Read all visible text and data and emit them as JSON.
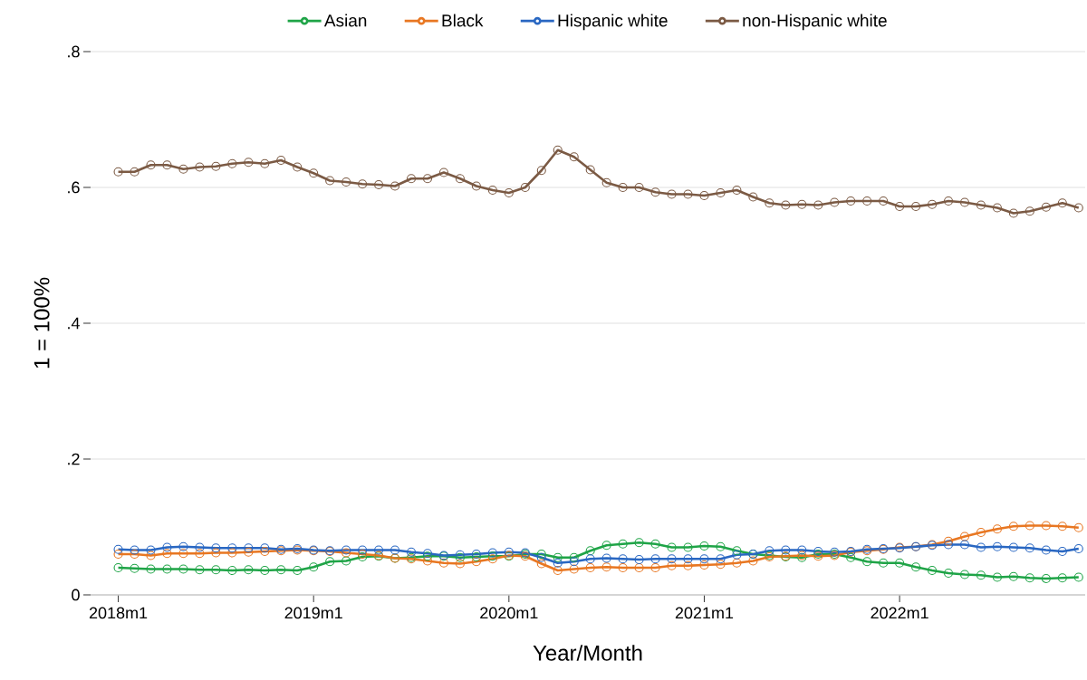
{
  "chart_data": {
    "type": "line",
    "xlabel": "Year/Month",
    "ylabel": "1 = 100%",
    "x": [
      "2018-01",
      "2018-02",
      "2018-03",
      "2018-04",
      "2018-05",
      "2018-06",
      "2018-07",
      "2018-08",
      "2018-09",
      "2018-10",
      "2018-11",
      "2018-12",
      "2019-01",
      "2019-02",
      "2019-03",
      "2019-04",
      "2019-05",
      "2019-06",
      "2019-07",
      "2019-08",
      "2019-09",
      "2019-10",
      "2019-11",
      "2019-12",
      "2020-01",
      "2020-02",
      "2020-03",
      "2020-04",
      "2020-05",
      "2020-06",
      "2020-07",
      "2020-08",
      "2020-09",
      "2020-10",
      "2020-11",
      "2020-12",
      "2021-01",
      "2021-02",
      "2021-03",
      "2021-04",
      "2021-05",
      "2021-06",
      "2021-07",
      "2021-08",
      "2021-09",
      "2021-10",
      "2021-11",
      "2021-12",
      "2022-01",
      "2022-02",
      "2022-03",
      "2022-04",
      "2022-05",
      "2022-06",
      "2022-07",
      "2022-08",
      "2022-09",
      "2022-10",
      "2022-11",
      "2022-12"
    ],
    "series": [
      {
        "name": "Asian",
        "color": "#1fa447",
        "values": [
          0.04,
          0.039,
          0.038,
          0.038,
          0.038,
          0.037,
          0.037,
          0.036,
          0.037,
          0.036,
          0.037,
          0.036,
          0.041,
          0.049,
          0.05,
          0.056,
          0.057,
          0.054,
          0.055,
          0.057,
          0.057,
          0.055,
          0.056,
          0.057,
          0.057,
          0.06,
          0.06,
          0.055,
          0.055,
          0.065,
          0.073,
          0.075,
          0.077,
          0.075,
          0.07,
          0.07,
          0.072,
          0.071,
          0.065,
          0.06,
          0.058,
          0.056,
          0.055,
          0.06,
          0.06,
          0.055,
          0.049,
          0.047,
          0.047,
          0.041,
          0.036,
          0.032,
          0.03,
          0.029,
          0.026,
          0.027,
          0.025,
          0.024,
          0.025,
          0.026
        ]
      },
      {
        "name": "Black",
        "color": "#e87722",
        "values": [
          0.06,
          0.06,
          0.058,
          0.061,
          0.061,
          0.061,
          0.062,
          0.062,
          0.063,
          0.064,
          0.065,
          0.066,
          0.065,
          0.064,
          0.062,
          0.06,
          0.058,
          0.054,
          0.053,
          0.05,
          0.047,
          0.046,
          0.049,
          0.053,
          0.058,
          0.057,
          0.046,
          0.036,
          0.038,
          0.04,
          0.041,
          0.04,
          0.04,
          0.04,
          0.043,
          0.043,
          0.044,
          0.045,
          0.047,
          0.05,
          0.056,
          0.057,
          0.058,
          0.057,
          0.058,
          0.063,
          0.065,
          0.067,
          0.07,
          0.071,
          0.074,
          0.079,
          0.086,
          0.092,
          0.097,
          0.101,
          0.102,
          0.102,
          0.101,
          0.099
        ]
      },
      {
        "name": "Hispanic white",
        "color": "#2967c2",
        "values": [
          0.067,
          0.066,
          0.066,
          0.07,
          0.071,
          0.07,
          0.069,
          0.069,
          0.069,
          0.069,
          0.067,
          0.068,
          0.066,
          0.065,
          0.066,
          0.066,
          0.066,
          0.066,
          0.063,
          0.061,
          0.058,
          0.059,
          0.06,
          0.062,
          0.063,
          0.062,
          0.055,
          0.047,
          0.049,
          0.053,
          0.054,
          0.053,
          0.052,
          0.053,
          0.053,
          0.053,
          0.053,
          0.053,
          0.059,
          0.06,
          0.065,
          0.066,
          0.066,
          0.064,
          0.063,
          0.064,
          0.067,
          0.068,
          0.069,
          0.071,
          0.073,
          0.074,
          0.074,
          0.07,
          0.071,
          0.07,
          0.069,
          0.066,
          0.064,
          0.068
        ]
      },
      {
        "name": "non-Hispanic white",
        "color": "#7b5a44",
        "values": [
          0.623,
          0.623,
          0.633,
          0.633,
          0.627,
          0.63,
          0.631,
          0.635,
          0.637,
          0.635,
          0.64,
          0.63,
          0.621,
          0.61,
          0.608,
          0.605,
          0.604,
          0.602,
          0.613,
          0.613,
          0.622,
          0.613,
          0.602,
          0.596,
          0.592,
          0.6,
          0.625,
          0.655,
          0.645,
          0.626,
          0.607,
          0.6,
          0.6,
          0.593,
          0.59,
          0.59,
          0.588,
          0.592,
          0.596,
          0.586,
          0.577,
          0.574,
          0.575,
          0.574,
          0.578,
          0.58,
          0.58,
          0.58,
          0.572,
          0.572,
          0.575,
          0.58,
          0.578,
          0.574,
          0.57,
          0.562,
          0.565,
          0.571,
          0.577,
          0.57
        ]
      }
    ],
    "xlim": [
      "2017-11-10",
      "2022-12-13"
    ],
    "ylim": [
      0,
      0.8
    ],
    "xticks": [
      {
        "value": "2018-01",
        "label": "2018m1"
      },
      {
        "value": "2019-01",
        "label": "2019m1"
      },
      {
        "value": "2020-01",
        "label": "2020m1"
      },
      {
        "value": "2021-01",
        "label": "2021m1"
      },
      {
        "value": "2022-01",
        "label": "2022m1"
      }
    ],
    "yticks": [
      0,
      {
        "value": 0.2,
        "label": ".2"
      },
      {
        "value": 0.4,
        "label": ".4"
      },
      {
        "value": 0.6,
        "label": ".6"
      },
      {
        "value": 0.8,
        "label": ".8"
      }
    ],
    "grid": "y",
    "legend": "top",
    "marker": "circle",
    "line_style": "solid"
  }
}
